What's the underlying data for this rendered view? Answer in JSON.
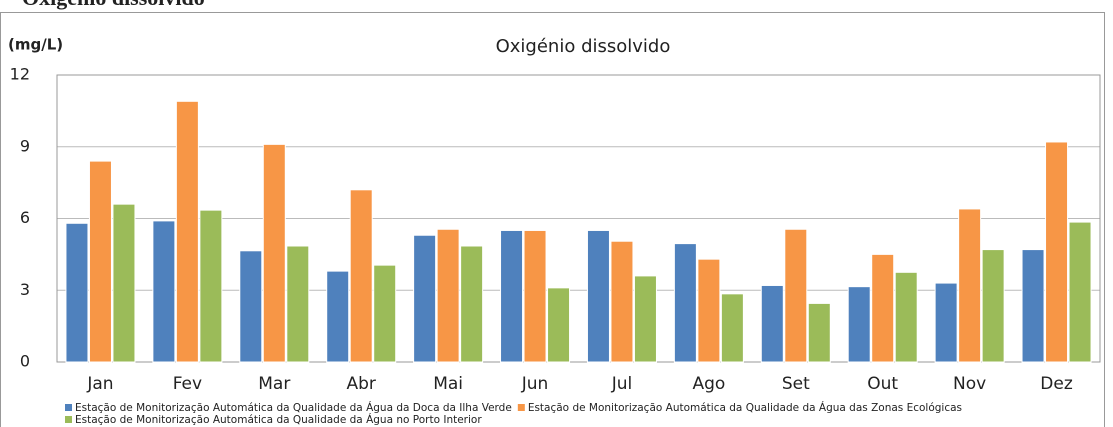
{
  "heading": "Oxigénio dissolvido",
  "chart_data": {
    "type": "bar",
    "title": "Oxigénio dissolvido",
    "y_label": "(mg/L)",
    "categories": [
      "Jan",
      "Fev",
      "Mar",
      "Abr",
      "Mai",
      "Jun",
      "Jul",
      "Ago",
      "Set",
      "Out",
      "Nov",
      "Dez"
    ],
    "series": [
      {
        "name": "Estação de Monitorização Automática da Qualidade da Água da Doca da Ilha Verde",
        "color": "#4f81bd",
        "values": [
          5.8,
          5.9,
          4.65,
          3.8,
          5.3,
          5.5,
          5.5,
          4.95,
          3.2,
          3.15,
          3.3,
          4.7
        ]
      },
      {
        "name": "Estação de Monitorização Automática da Qualidade da Água das Zonas Ecológicas",
        "color": "#f79646",
        "values": [
          8.4,
          10.9,
          9.1,
          7.2,
          5.55,
          5.5,
          5.05,
          4.3,
          5.55,
          4.5,
          6.4,
          9.2
        ]
      },
      {
        "name": "Estação de Monitorização Automática da Qualidade da Água no Porto Interior",
        "color": "#9bbb59",
        "values": [
          6.6,
          6.35,
          4.85,
          4.05,
          4.85,
          3.1,
          3.6,
          2.85,
          2.45,
          3.75,
          4.7,
          5.85
        ]
      }
    ],
    "ylim": [
      0,
      12
    ],
    "yticks": [
      0,
      3,
      6,
      9,
      12
    ],
    "grid": true
  }
}
